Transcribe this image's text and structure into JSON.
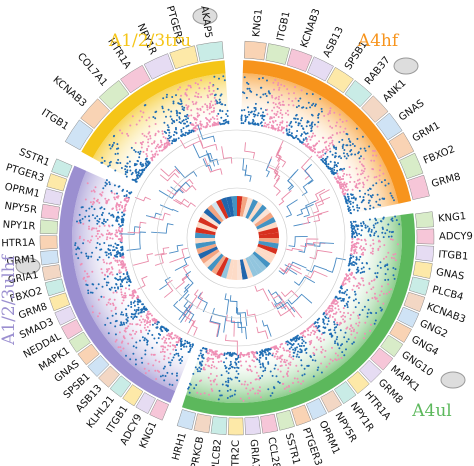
{
  "segments": [
    {
      "title": "A1/2/3tru",
      "color": "#f5c518",
      "genes": [
        "ITGB1",
        "KCNAB3",
        "COL7A1",
        "HTR1A",
        "NPY1R",
        "PTGER3",
        "AKAP5"
      ]
    },
    {
      "title": "A4hf",
      "color": "#f7941d",
      "genes": [
        "KNG1",
        "ITGB1",
        "KCNAB3",
        "ASB13",
        "SPSB1",
        "RAB37",
        "ANK1",
        "GNAS",
        "GRM1",
        "FBXO2",
        "GRM8"
      ]
    },
    {
      "title": "A4ul",
      "color": "#5cb85c",
      "genes": [
        "KNG1",
        "ADCY9",
        "ITGB1",
        "GNAS",
        "PLCB4",
        "KCNAB3",
        "GNG2",
        "GNG4",
        "GNG10",
        "MAPK1",
        "GRM8",
        "HTR1A",
        "NPY1R",
        "NPY5R",
        "OPRM1",
        "PTGER3",
        "SSTR1",
        "CCL28",
        "GRIA1",
        "HTR2C",
        "PLCB2",
        "PRKCB",
        "HRH1"
      ]
    },
    {
      "title": "A1/2/3ulhf",
      "color": "#9b8fd0",
      "genes": [
        "KNG1",
        "ADCY9",
        "ITGB1",
        "KLHL21",
        "ASB13",
        "SPSB1",
        "GNAS",
        "MAPK1",
        "NEDD4L",
        "SMAD3",
        "GRM8",
        "FBXO2",
        "GRIA1",
        "GRM1",
        "HTR1A",
        "NPY1R",
        "NPY5R",
        "OPRM1",
        "PTGER3",
        "SSTR1"
      ]
    }
  ]
}
